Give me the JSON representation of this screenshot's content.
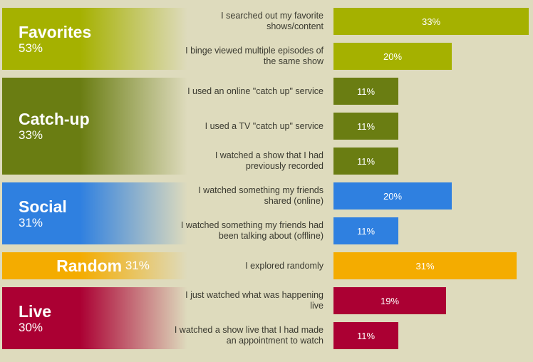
{
  "chart_data": {
    "type": "bar",
    "orientation": "horizontal",
    "xlim": [
      0,
      33
    ],
    "groups": [
      {
        "name": "Favorites",
        "pct": "53%",
        "color": "#a5b100",
        "layout": "stacked",
        "items": [
          {
            "label": "I searched out my favorite shows/content",
            "value": 33,
            "value_label": "33%"
          },
          {
            "label": "I binge viewed multiple episodes of the same show",
            "value": 20,
            "value_label": "20%"
          }
        ]
      },
      {
        "name": "Catch-up",
        "pct": "33%",
        "color": "#6a7d12",
        "layout": "stacked",
        "items": [
          {
            "label": "I used an online \"catch up\" service",
            "value": 11,
            "value_label": "11%"
          },
          {
            "label": "I used a TV \"catch up\" service",
            "value": 11,
            "value_label": "11%"
          },
          {
            "label": "I watched a show that I had previously recorded",
            "value": 11,
            "value_label": "11%"
          }
        ]
      },
      {
        "name": "Social",
        "pct": "31%",
        "color": "#2f80e0",
        "layout": "stacked",
        "items": [
          {
            "label": "I watched something my friends shared (online)",
            "value": 20,
            "value_label": "20%"
          },
          {
            "label": "I watched something my friends had been talking about (offline)",
            "value": 11,
            "value_label": "11%"
          }
        ]
      },
      {
        "name": "Random",
        "pct": "31%",
        "color": "#f4ac00",
        "layout": "inline",
        "items": [
          {
            "label": "I explored randomly",
            "value": 31,
            "value_label": "31%"
          }
        ]
      },
      {
        "name": "Live",
        "pct": "30%",
        "color": "#ab0033",
        "layout": "stacked",
        "items": [
          {
            "label": "I just watched what was happening live",
            "value": 19,
            "value_label": "19%"
          },
          {
            "label": "I watched a show live that I had made an appointment to watch",
            "value": 11,
            "value_label": "11%"
          }
        ]
      }
    ]
  }
}
